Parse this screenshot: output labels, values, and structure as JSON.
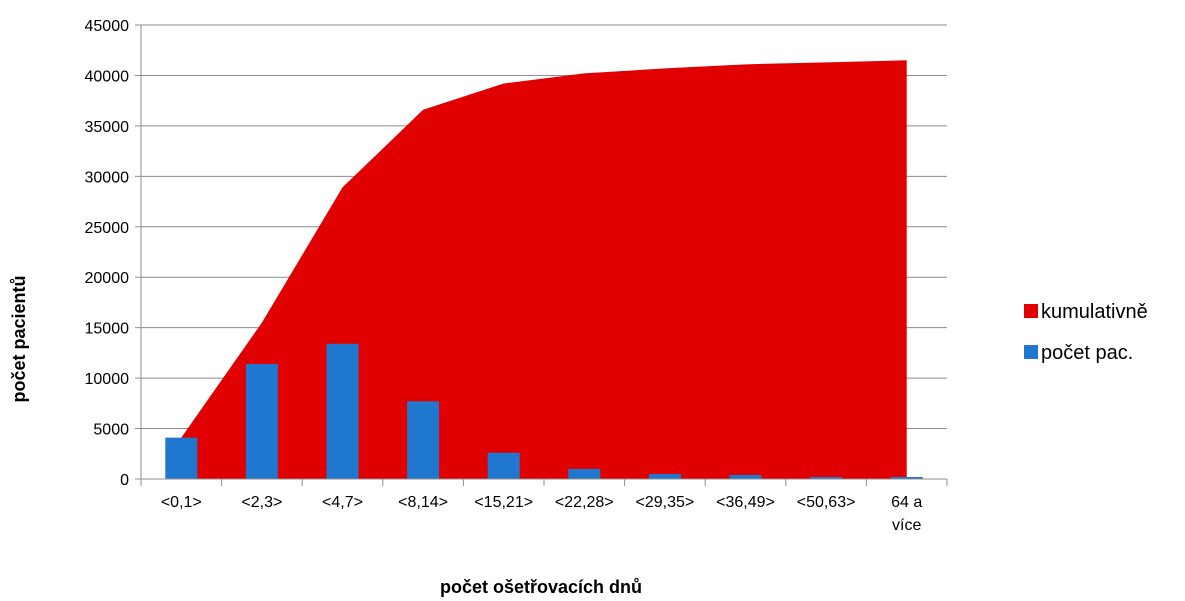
{
  "chart_data": {
    "type": "bar",
    "title": "",
    "xlabel": "počet ošetřovacích dnů",
    "ylabel": "počet pacientů",
    "ylim": [
      0,
      45000
    ],
    "yticks": [
      0,
      5000,
      10000,
      15000,
      20000,
      25000,
      30000,
      35000,
      40000,
      45000
    ],
    "grid": true,
    "legend_position": "right",
    "categories": [
      [
        "<0,1>"
      ],
      [
        "<2,3>"
      ],
      [
        "<4,7>"
      ],
      [
        "<8,14>"
      ],
      [
        "<15,21>"
      ],
      [
        "<22,28>"
      ],
      [
        "<29,35>"
      ],
      [
        "<36,49>"
      ],
      [
        "<50,63>"
      ],
      [
        "64 a",
        "více"
      ]
    ],
    "series": [
      {
        "name": "kumulativně",
        "type": "area",
        "color": "#E00000",
        "values": [
          4100,
          15500,
          28900,
          36600,
          39200,
          40200,
          40700,
          41100,
          41300,
          41500
        ]
      },
      {
        "name": "počet pac.",
        "type": "bar",
        "color": "#1F77D0",
        "values": [
          4100,
          11400,
          13400,
          7700,
          2600,
          1000,
          500,
          400,
          200,
          200
        ]
      }
    ]
  }
}
